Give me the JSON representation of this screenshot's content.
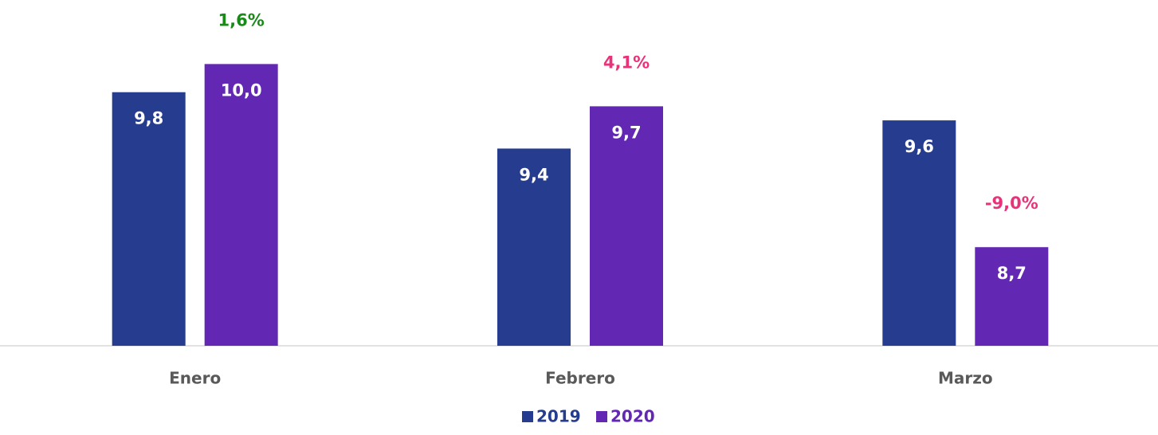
{
  "chart_data": {
    "type": "bar",
    "categories": [
      "Enero",
      "Febrero",
      "Marzo"
    ],
    "series": [
      {
        "name": "2019",
        "color": "#253c8f",
        "values": [
          9.8,
          9.4,
          9.6
        ],
        "value_labels": [
          "9,8",
          "9,4",
          "9,6"
        ]
      },
      {
        "name": "2020",
        "color": "#6328b3",
        "values": [
          10.0,
          9.7,
          8.7
        ],
        "value_labels": [
          "10,0",
          "9,7",
          "8,7"
        ]
      }
    ],
    "changes": {
      "values": [
        1.6,
        4.1,
        -9.0
      ],
      "value_labels": [
        "1,6%",
        "4,1%",
        "-9,0%"
      ],
      "colors": [
        "#188a18",
        "#e8337a",
        "#e8337a"
      ]
    },
    "ylim": [
      8,
      10.2
    ]
  }
}
